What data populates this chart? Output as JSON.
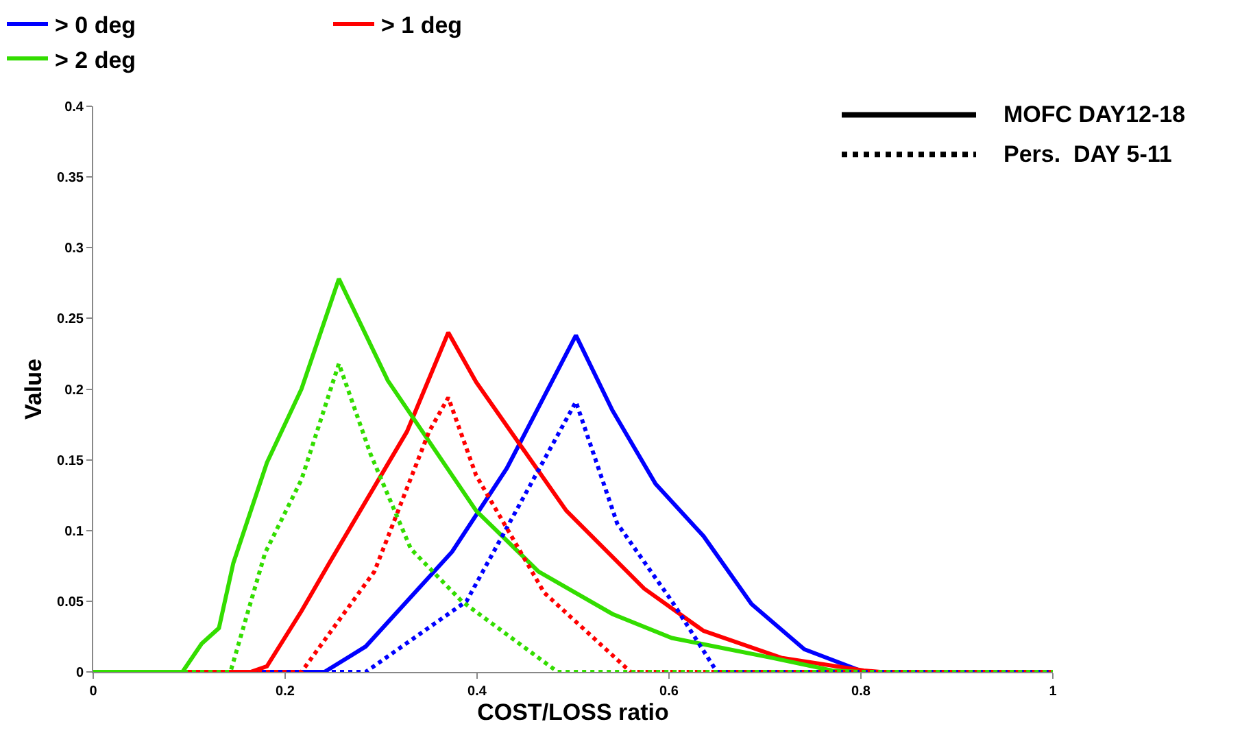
{
  "chart_data": {
    "type": "line",
    "xlabel": "COST/LOSS ratio",
    "ylabel": "Value",
    "xlim": [
      0,
      1
    ],
    "xticks": [
      0,
      0.2,
      0.4,
      0.6,
      0.8,
      1
    ],
    "ylim": [
      0,
      0.4
    ],
    "yticks": [
      0,
      0.05,
      0.1,
      0.15,
      0.2,
      0.25,
      0.3,
      0.35,
      0.4
    ],
    "legend": "top",
    "marker": "none",
    "annotations": [
      "MOFC DAY12-18",
      "Pers.  DAY 5-11"
    ],
    "series": [
      {
        "name": "> 0 deg",
        "color": "#0000ff",
        "line_style": "solid",
        "x": [
          0,
          0.241,
          0.284,
          0.374,
          0.431,
          0.503,
          0.541,
          0.586,
          0.636,
          0.686,
          0.741,
          0.803,
          1
        ],
        "values": [
          0,
          0,
          0.018,
          0.085,
          0.144,
          0.238,
          0.185,
          0.133,
          0.096,
          0.048,
          0.016,
          0,
          0
        ]
      },
      {
        "name": "> 1 deg",
        "color": "#ff0000",
        "line_style": "solid",
        "x": [
          0,
          0.164,
          0.181,
          0.217,
          0.246,
          0.327,
          0.37,
          0.399,
          0.493,
          0.574,
          0.636,
          0.717,
          0.803,
          0.82,
          1
        ],
        "values": [
          0,
          0,
          0.004,
          0.043,
          0.077,
          0.17,
          0.24,
          0.205,
          0.114,
          0.059,
          0.029,
          0.01,
          0.001,
          0,
          0
        ]
      },
      {
        "name": "> 2 deg",
        "color": "#33dd00",
        "line_style": "solid",
        "x": [
          0,
          0.093,
          0.113,
          0.131,
          0.146,
          0.181,
          0.217,
          0.256,
          0.307,
          0.399,
          0.464,
          0.541,
          0.603,
          0.707,
          0.77,
          0.8,
          1
        ],
        "values": [
          0,
          0,
          0.02,
          0.031,
          0.077,
          0.148,
          0.2,
          0.278,
          0.206,
          0.114,
          0.071,
          0.041,
          0.024,
          0.01,
          0.001,
          0,
          0
        ]
      },
      {
        "color": "#0000ff",
        "line_style": "dotted",
        "x": [
          0,
          0.284,
          0.389,
          0.503,
          0.546,
          0.603,
          0.65,
          1
        ],
        "values": [
          0,
          0,
          0.05,
          0.191,
          0.105,
          0.05,
          0,
          0
        ]
      },
      {
        "color": "#ff0000",
        "line_style": "dotted",
        "x": [
          0,
          0.217,
          0.293,
          0.35,
          0.37,
          0.399,
          0.47,
          0.56,
          1
        ],
        "values": [
          0,
          0,
          0.071,
          0.17,
          0.194,
          0.139,
          0.056,
          0,
          0
        ]
      },
      {
        "color": "#33dd00",
        "line_style": "dotted",
        "x": [
          0,
          0.143,
          0.179,
          0.217,
          0.256,
          0.289,
          0.331,
          0.384,
          0.484,
          1
        ],
        "values": [
          0,
          0,
          0.084,
          0.136,
          0.218,
          0.154,
          0.087,
          0.05,
          0,
          0
        ]
      }
    ]
  }
}
